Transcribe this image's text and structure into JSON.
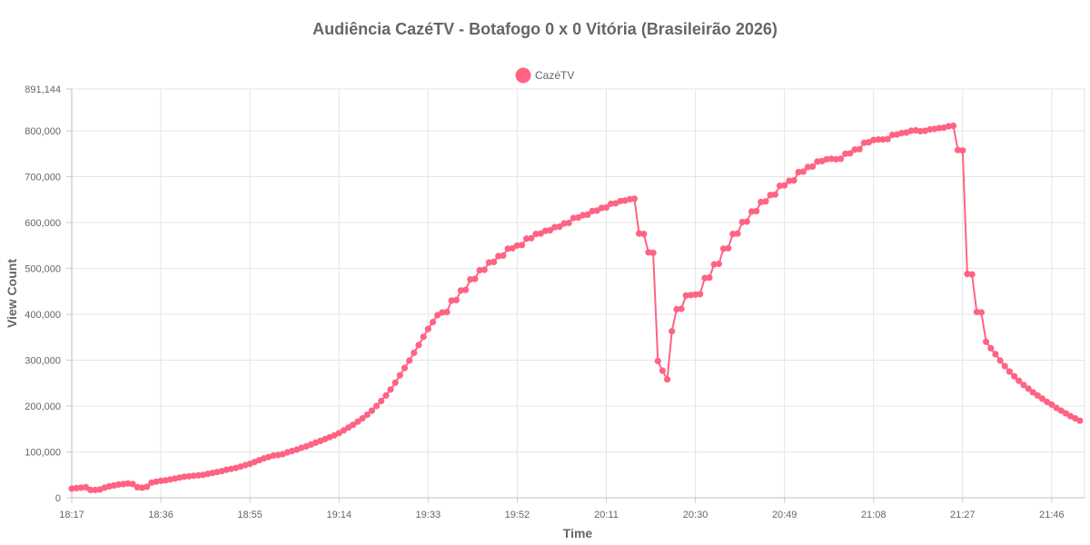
{
  "chart_data": {
    "type": "line",
    "title": "Audiência CazéTV - Botafogo 0 x 0 Vitória (Brasileirão 2026)",
    "xlabel": "Time",
    "ylabel": "View Count",
    "x_tick_labels": [
      "18:17",
      "18:36",
      "18:55",
      "19:14",
      "19:33",
      "19:52",
      "20:11",
      "20:30",
      "20:49",
      "21:08",
      "21:27",
      "21:46"
    ],
    "x_start_time": "18:17",
    "x_end_time": "21:53",
    "y_tick_labels": [
      "0",
      "100,000",
      "200,000",
      "300,000",
      "400,000",
      "500,000",
      "600,000",
      "700,000",
      "800,000",
      "891,144"
    ],
    "ylim": [
      0,
      891144
    ],
    "grid": true,
    "legend_position": "top-center",
    "series": [
      {
        "name": "CazéTV",
        "color": "#ff6384",
        "points": [
          [
            "18:17",
            20000
          ],
          [
            "18:18",
            21000
          ],
          [
            "18:19",
            22000
          ],
          [
            "18:20",
            23000
          ],
          [
            "18:21",
            17000
          ],
          [
            "18:22",
            17000
          ],
          [
            "18:23",
            18000
          ],
          [
            "18:24",
            22000
          ],
          [
            "18:25",
            25000
          ],
          [
            "18:26",
            27000
          ],
          [
            "18:27",
            29000
          ],
          [
            "18:28",
            30000
          ],
          [
            "18:29",
            31000
          ],
          [
            "18:30",
            30000
          ],
          [
            "18:31",
            23000
          ],
          [
            "18:32",
            22000
          ],
          [
            "18:33",
            24000
          ],
          [
            "18:34",
            33000
          ],
          [
            "18:35",
            35000
          ],
          [
            "18:36",
            37000
          ],
          [
            "18:37",
            38000
          ],
          [
            "18:38",
            40000
          ],
          [
            "18:39",
            42000
          ],
          [
            "18:40",
            44000
          ],
          [
            "18:41",
            46000
          ],
          [
            "18:42",
            47000
          ],
          [
            "18:43",
            48000
          ],
          [
            "18:44",
            49000
          ],
          [
            "18:45",
            50000
          ],
          [
            "18:46",
            52000
          ],
          [
            "18:47",
            54000
          ],
          [
            "18:48",
            56000
          ],
          [
            "18:49",
            58000
          ],
          [
            "18:50",
            61000
          ],
          [
            "18:51",
            63000
          ],
          [
            "18:52",
            65000
          ],
          [
            "18:53",
            68000
          ],
          [
            "18:54",
            71000
          ],
          [
            "18:55",
            74000
          ],
          [
            "18:56",
            78000
          ],
          [
            "18:57",
            82000
          ],
          [
            "18:58",
            86000
          ],
          [
            "18:59",
            89000
          ],
          [
            "19:00",
            92000
          ],
          [
            "19:01",
            93000
          ],
          [
            "19:02",
            95000
          ],
          [
            "19:03",
            99000
          ],
          [
            "19:04",
            102000
          ],
          [
            "19:05",
            105000
          ],
          [
            "19:06",
            109000
          ],
          [
            "19:07",
            112000
          ],
          [
            "19:08",
            116000
          ],
          [
            "19:09",
            120000
          ],
          [
            "19:10",
            124000
          ],
          [
            "19:11",
            128000
          ],
          [
            "19:12",
            132000
          ],
          [
            "19:13",
            136000
          ],
          [
            "19:14",
            141000
          ],
          [
            "19:15",
            147000
          ],
          [
            "19:16",
            153000
          ],
          [
            "19:17",
            159000
          ],
          [
            "19:18",
            166000
          ],
          [
            "19:19",
            173000
          ],
          [
            "19:20",
            181000
          ],
          [
            "19:21",
            190000
          ],
          [
            "19:22",
            200000
          ],
          [
            "19:23",
            211000
          ],
          [
            "19:24",
            223000
          ],
          [
            "19:25",
            236000
          ],
          [
            "19:26",
            251000
          ],
          [
            "19:27",
            267000
          ],
          [
            "19:28",
            283000
          ],
          [
            "19:29",
            299000
          ],
          [
            "19:30",
            316000
          ],
          [
            "19:31",
            333000
          ],
          [
            "19:32",
            351000
          ],
          [
            "19:33",
            368000
          ],
          [
            "19:34",
            383000
          ],
          [
            "19:35",
            398000
          ],
          [
            "19:36",
            404000
          ],
          [
            "19:37",
            405000
          ],
          [
            "19:38",
            430000
          ],
          [
            "19:39",
            431000
          ],
          [
            "19:40",
            452000
          ],
          [
            "19:41",
            453000
          ],
          [
            "19:42",
            476000
          ],
          [
            "19:43",
            477000
          ],
          [
            "19:44",
            496000
          ],
          [
            "19:45",
            497000
          ],
          [
            "19:46",
            513000
          ],
          [
            "19:47",
            514000
          ],
          [
            "19:48",
            527000
          ],
          [
            "19:49",
            528000
          ],
          [
            "19:50",
            543000
          ],
          [
            "19:51",
            544000
          ],
          [
            "19:52",
            550000
          ],
          [
            "19:53",
            551000
          ],
          [
            "19:54",
            565000
          ],
          [
            "19:55",
            566000
          ],
          [
            "19:56",
            575000
          ],
          [
            "19:57",
            576000
          ],
          [
            "19:58",
            582000
          ],
          [
            "19:59",
            583000
          ],
          [
            "20:00",
            590000
          ],
          [
            "20:01",
            591000
          ],
          [
            "20:02",
            598000
          ],
          [
            "20:03",
            599000
          ],
          [
            "20:04",
            610000
          ],
          [
            "20:05",
            611000
          ],
          [
            "20:06",
            616000
          ],
          [
            "20:07",
            617000
          ],
          [
            "20:08",
            625000
          ],
          [
            "20:09",
            626000
          ],
          [
            "20:10",
            632000
          ],
          [
            "20:11",
            633000
          ],
          [
            "20:12",
            641000
          ],
          [
            "20:13",
            642000
          ],
          [
            "20:14",
            647000
          ],
          [
            "20:15",
            648000
          ],
          [
            "20:16",
            651000
          ],
          [
            "20:17",
            652000
          ],
          [
            "20:18",
            576000
          ],
          [
            "20:19",
            575000
          ],
          [
            "20:20",
            535000
          ],
          [
            "20:21",
            534000
          ],
          [
            "20:22",
            298000
          ],
          [
            "20:23",
            277000
          ],
          [
            "20:24",
            258000
          ],
          [
            "20:25",
            363000
          ],
          [
            "20:26",
            411000
          ],
          [
            "20:27",
            412000
          ],
          [
            "20:28",
            441000
          ],
          [
            "20:29",
            442000
          ],
          [
            "20:30",
            443000
          ],
          [
            "20:31",
            444000
          ],
          [
            "20:32",
            479000
          ],
          [
            "20:33",
            480000
          ],
          [
            "20:34",
            509000
          ],
          [
            "20:35",
            510000
          ],
          [
            "20:36",
            543000
          ],
          [
            "20:37",
            544000
          ],
          [
            "20:38",
            575000
          ],
          [
            "20:39",
            576000
          ],
          [
            "20:40",
            601000
          ],
          [
            "20:41",
            602000
          ],
          [
            "20:42",
            624000
          ],
          [
            "20:43",
            625000
          ],
          [
            "20:44",
            645000
          ],
          [
            "20:45",
            646000
          ],
          [
            "20:46",
            660000
          ],
          [
            "20:47",
            661000
          ],
          [
            "20:48",
            680000
          ],
          [
            "20:49",
            681000
          ],
          [
            "20:50",
            691000
          ],
          [
            "20:51",
            692000
          ],
          [
            "20:52",
            710000
          ],
          [
            "20:53",
            711000
          ],
          [
            "20:54",
            721000
          ],
          [
            "20:55",
            722000
          ],
          [
            "20:56",
            733000
          ],
          [
            "20:57",
            734000
          ],
          [
            "20:58",
            738000
          ],
          [
            "20:59",
            739000
          ],
          [
            "21:00",
            738000
          ],
          [
            "21:01",
            739000
          ],
          [
            "21:02",
            750000
          ],
          [
            "21:03",
            751000
          ],
          [
            "21:04",
            759000
          ],
          [
            "21:05",
            760000
          ],
          [
            "21:06",
            774000
          ],
          [
            "21:07",
            775000
          ],
          [
            "21:08",
            780000
          ],
          [
            "21:09",
            781000
          ],
          [
            "21:10",
            781000
          ],
          [
            "21:11",
            782000
          ],
          [
            "21:12",
            791000
          ],
          [
            "21:13",
            792000
          ],
          [
            "21:14",
            795000
          ],
          [
            "21:15",
            796000
          ],
          [
            "21:16",
            800000
          ],
          [
            "21:17",
            801000
          ],
          [
            "21:18",
            799000
          ],
          [
            "21:19",
            800000
          ],
          [
            "21:20",
            803000
          ],
          [
            "21:21",
            804000
          ],
          [
            "21:22",
            806000
          ],
          [
            "21:23",
            807000
          ],
          [
            "21:24",
            810000
          ],
          [
            "21:25",
            811000
          ],
          [
            "21:26",
            758000
          ],
          [
            "21:27",
            757000
          ],
          [
            "21:28",
            488000
          ],
          [
            "21:29",
            487000
          ],
          [
            "21:30",
            405000
          ],
          [
            "21:31",
            404000
          ],
          [
            "21:32",
            340000
          ],
          [
            "21:33",
            326000
          ],
          [
            "21:34",
            313000
          ],
          [
            "21:35",
            299000
          ],
          [
            "21:36",
            287000
          ],
          [
            "21:37",
            275000
          ],
          [
            "21:38",
            265000
          ],
          [
            "21:39",
            255000
          ],
          [
            "21:40",
            246000
          ],
          [
            "21:41",
            238000
          ],
          [
            "21:42",
            230000
          ],
          [
            "21:43",
            223000
          ],
          [
            "21:44",
            216000
          ],
          [
            "21:45",
            209000
          ],
          [
            "21:46",
            203000
          ],
          [
            "21:47",
            196000
          ],
          [
            "21:48",
            190000
          ],
          [
            "21:49",
            184000
          ],
          [
            "21:50",
            178000
          ],
          [
            "21:51",
            173000
          ],
          [
            "21:52",
            168000
          ]
        ]
      }
    ]
  }
}
